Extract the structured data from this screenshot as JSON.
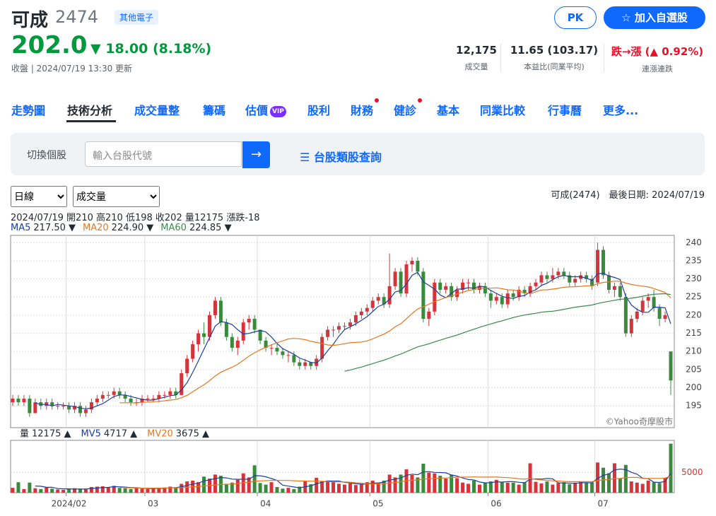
{
  "header": {
    "name": "可成",
    "code": "2474",
    "industry": "其他電子",
    "price": "202.0",
    "change": "18.00 (8.18%)",
    "update": "收盤 | 2024/07/19 13:30 更新",
    "pk": "PK",
    "add": "加入自選股",
    "stats": [
      {
        "value": "12,175",
        "label": "成交量"
      },
      {
        "value": "11.65 (103.17)",
        "label": "本益比(同業平均)"
      },
      {
        "value": "跌→漲 (▲ 0.92%)",
        "label": "連漲連跌"
      }
    ]
  },
  "tabs": [
    {
      "label": "走勢圖"
    },
    {
      "label": "技術分析",
      "active": true
    },
    {
      "label": "成交量整"
    },
    {
      "label": "籌碼"
    },
    {
      "label": "估價",
      "badge": "VIP"
    },
    {
      "label": "股利"
    },
    {
      "label": "財務",
      "dot": true
    },
    {
      "label": "健診",
      "dot": true
    },
    {
      "label": "基本"
    },
    {
      "label": "同業比較"
    },
    {
      "label": "行事曆"
    },
    {
      "label": "更多..."
    }
  ],
  "search": {
    "label": "切換個股",
    "placeholder": "輸入台股代號",
    "arrow": "→",
    "category": "☰ 台股類股查詢"
  },
  "selects": [
    "日線",
    "成交量"
  ],
  "summary": "可成(2474)　最後日期: 2024/07/19",
  "chart_data": {
    "type": "candlestick",
    "info": "2024/07/19 開210 高210 低198 收202 量12175 漲跌-18",
    "ma_legend": [
      {
        "name": "MA5",
        "value": "217.50 ▼",
        "color": "#1c3f9e"
      },
      {
        "name": "MA20",
        "value": "224.90 ▼",
        "color": "#e8771e"
      },
      {
        "name": "MA60",
        "value": "224.85 ▼",
        "color": "#3b8a4c"
      }
    ],
    "volume_legend": [
      {
        "name": "量",
        "value": "12175 ▲",
        "color": "#232a31"
      },
      {
        "name": "MV5",
        "value": "4717 ▲",
        "color": "#1c3f9e"
      },
      {
        "name": "MV20",
        "value": "3675 ▲",
        "color": "#e8771e"
      }
    ],
    "watermark": "©Yahoo奇摩股市",
    "up_color": "#d6343a",
    "down_color": "#3a8a3e",
    "ylim": [
      189,
      242
    ],
    "yticks": [
      195,
      200,
      205,
      210,
      215,
      220,
      225,
      230,
      235,
      240
    ],
    "volume_ylim": [
      0,
      13000
    ],
    "volume_yticks": [
      5000
    ],
    "month_labels": [
      {
        "index": 10,
        "label": "2024/02"
      },
      {
        "index": 24,
        "label": "03"
      },
      {
        "index": 44,
        "label": "04"
      },
      {
        "index": 64,
        "label": "05"
      },
      {
        "index": 85,
        "label": "06"
      },
      {
        "index": 104,
        "label": "07"
      }
    ],
    "candles": [
      [
        196,
        198,
        195,
        197
      ],
      [
        197,
        198,
        195,
        196
      ],
      [
        196,
        198,
        195,
        197
      ],
      [
        197,
        198,
        192,
        193
      ],
      [
        193,
        197,
        193,
        196
      ],
      [
        196,
        197,
        194,
        195
      ],
      [
        195,
        197,
        194,
        196
      ],
      [
        196,
        197,
        194,
        195
      ],
      [
        195,
        196,
        194,
        195
      ],
      [
        195,
        196,
        194,
        195
      ],
      [
        195,
        196,
        193,
        194
      ],
      [
        194,
        196,
        193,
        195
      ],
      [
        195,
        196,
        192,
        193
      ],
      [
        193,
        195,
        192,
        194
      ],
      [
        194,
        197,
        193,
        196
      ],
      [
        196,
        198,
        195,
        197
      ],
      [
        197,
        199,
        196,
        198
      ],
      [
        198,
        199,
        197,
        198
      ],
      [
        198,
        200,
        197,
        199
      ],
      [
        199,
        200,
        197,
        198
      ],
      [
        198,
        199,
        196,
        197
      ],
      [
        197,
        198,
        195,
        196
      ],
      [
        196,
        197,
        195,
        196
      ],
      [
        196,
        198,
        195,
        197
      ],
      [
        197,
        198,
        196,
        197
      ],
      [
        197,
        198,
        196,
        197
      ],
      [
        197,
        199,
        196,
        198
      ],
      [
        198,
        199,
        197,
        198
      ],
      [
        198,
        200,
        197,
        199
      ],
      [
        199,
        200,
        197,
        198
      ],
      [
        198,
        205,
        198,
        204
      ],
      [
        204,
        209,
        203,
        208
      ],
      [
        208,
        213,
        207,
        212
      ],
      [
        212,
        216,
        210,
        215
      ],
      [
        215,
        218,
        212,
        214
      ],
      [
        214,
        221,
        213,
        220
      ],
      [
        220,
        225,
        219,
        224
      ],
      [
        224,
        225,
        217,
        218
      ],
      [
        218,
        219,
        213,
        214
      ],
      [
        214,
        215,
        210,
        211
      ],
      [
        211,
        214,
        209,
        213
      ],
      [
        213,
        219,
        212,
        218
      ],
      [
        218,
        220,
        216,
        219
      ],
      [
        219,
        220,
        215,
        216
      ],
      [
        216,
        216,
        212,
        213
      ],
      [
        213,
        214,
        210,
        211
      ],
      [
        211,
        212,
        209,
        211
      ],
      [
        211,
        212,
        209,
        210
      ],
      [
        210,
        211,
        208,
        209
      ],
      [
        209,
        210,
        207,
        209
      ],
      [
        209,
        210,
        206,
        207
      ],
      [
        207,
        208,
        205,
        206
      ],
      [
        206,
        208,
        205,
        207
      ],
      [
        207,
        207,
        205,
        206
      ],
      [
        206,
        209,
        205,
        208
      ],
      [
        208,
        215,
        207,
        214
      ],
      [
        214,
        217,
        213,
        216
      ],
      [
        216,
        217,
        214,
        216
      ],
      [
        216,
        218,
        215,
        217
      ],
      [
        217,
        218,
        216,
        217
      ],
      [
        217,
        219,
        216,
        218
      ],
      [
        218,
        221,
        217,
        220
      ],
      [
        220,
        222,
        219,
        221
      ],
      [
        221,
        223,
        220,
        222
      ],
      [
        222,
        225,
        221,
        224
      ],
      [
        224,
        226,
        223,
        225
      ],
      [
        225,
        226,
        222,
        223
      ],
      [
        223,
        237,
        222,
        228
      ],
      [
        228,
        233,
        227,
        232
      ],
      [
        232,
        233,
        225,
        226
      ],
      [
        226,
        235,
        225,
        234
      ],
      [
        234,
        236,
        232,
        235
      ],
      [
        235,
        236,
        231,
        232
      ],
      [
        232,
        233,
        218,
        219
      ],
      [
        219,
        222,
        217,
        221
      ],
      [
        221,
        230,
        220,
        229
      ],
      [
        229,
        230,
        226,
        227
      ],
      [
        227,
        229,
        226,
        228
      ],
      [
        228,
        229,
        224,
        225
      ],
      [
        225,
        228,
        224,
        227
      ],
      [
        227,
        230,
        226,
        229
      ],
      [
        229,
        230,
        227,
        229
      ],
      [
        229,
        230,
        226,
        227
      ],
      [
        227,
        229,
        226,
        228
      ],
      [
        228,
        229,
        225,
        226
      ],
      [
        226,
        227,
        222,
        224
      ],
      [
        224,
        226,
        223,
        225
      ],
      [
        225,
        226,
        222,
        223
      ],
      [
        223,
        227,
        222,
        226
      ],
      [
        226,
        227,
        224,
        225
      ],
      [
        225,
        228,
        224,
        227
      ],
      [
        227,
        228,
        225,
        226
      ],
      [
        226,
        229,
        225,
        228
      ],
      [
        228,
        230,
        227,
        229
      ],
      [
        229,
        232,
        228,
        231
      ],
      [
        231,
        232,
        229,
        230
      ],
      [
        230,
        233,
        229,
        231
      ],
      [
        231,
        233,
        230,
        232
      ],
      [
        232,
        233,
        230,
        231
      ],
      [
        231,
        232,
        228,
        229
      ],
      [
        229,
        231,
        228,
        230
      ],
      [
        230,
        232,
        229,
        231
      ],
      [
        231,
        232,
        229,
        230
      ],
      [
        230,
        231,
        227,
        228
      ],
      [
        229,
        240,
        228,
        238
      ],
      [
        238,
        239,
        230,
        231
      ],
      [
        231,
        232,
        226,
        227
      ],
      [
        227,
        229,
        225,
        228
      ],
      [
        228,
        229,
        224,
        225
      ],
      [
        225,
        226,
        214,
        215
      ],
      [
        215,
        220,
        214,
        219
      ],
      [
        219,
        222,
        218,
        221
      ],
      [
        221,
        225,
        220,
        224
      ],
      [
        224,
        226,
        222,
        225
      ],
      [
        225,
        227,
        221,
        222
      ],
      [
        222,
        223,
        217,
        219
      ],
      [
        219,
        221,
        218,
        220
      ],
      [
        210,
        210,
        198,
        202
      ]
    ],
    "volumes": [
      1200,
      2600,
      900,
      2500,
      1100,
      900,
      1300,
      1000,
      800,
      700,
      900,
      1100,
      1000,
      800,
      1400,
      1500,
      1600,
      1300,
      1700,
      1200,
      1100,
      900,
      1300,
      1000,
      900,
      1000,
      1200,
      1300,
      1500,
      1200,
      2200,
      2800,
      3000,
      2600,
      4000,
      3500,
      4500,
      4200,
      2200,
      2500,
      3200,
      4800,
      3800,
      6800,
      2400,
      2000,
      2600,
      1400,
      1000,
      1200,
      900,
      1500,
      2800,
      2100,
      3700,
      2900,
      3000,
      2700,
      2200,
      2000,
      2300,
      1900,
      2100,
      2600,
      3000,
      2500,
      3000,
      4500,
      3800,
      4500,
      5800,
      4400,
      3800,
      7200,
      5000,
      4800,
      4200,
      3500,
      4500,
      3600,
      2500,
      2200,
      3000,
      2000,
      2500,
      2800,
      3200,
      2700,
      2500,
      2500,
      2000,
      2600,
      7300,
      2700,
      2300,
      2800,
      2000,
      2400,
      2600,
      2100,
      2500,
      2800,
      2400,
      2500,
      7500,
      6200,
      4800,
      7300,
      3500,
      6900,
      2800,
      2500,
      2200,
      3000,
      2600,
      2400,
      3700,
      12175
    ]
  }
}
